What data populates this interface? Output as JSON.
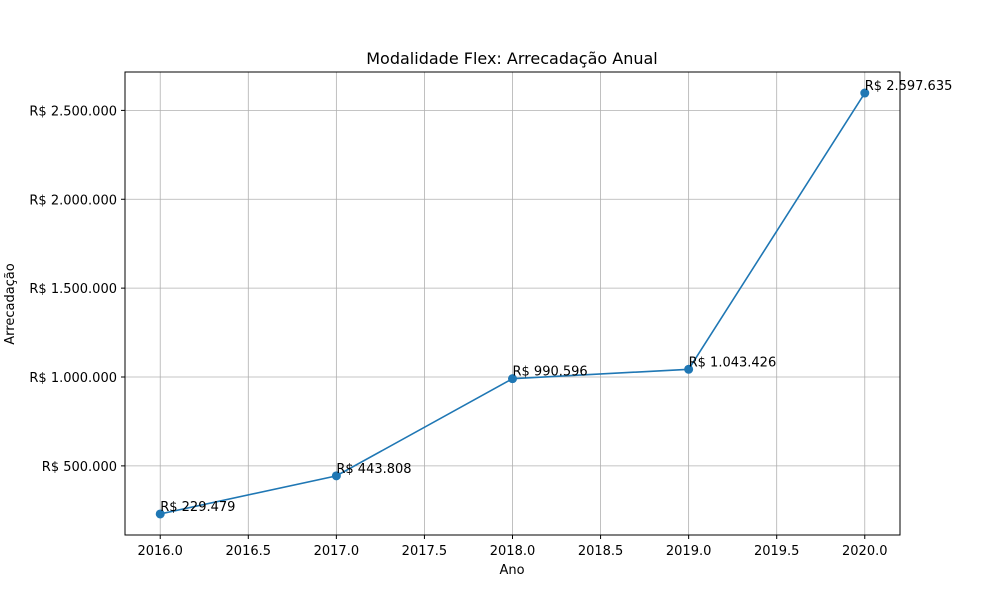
{
  "chart_data": {
    "type": "line",
    "title": "Modalidade Flex: Arrecadação Anual",
    "xlabel": "Ano",
    "ylabel": "Arrecadação",
    "xlim": [
      2015.8,
      2020.2
    ],
    "ylim": [
      111071,
      2716043
    ],
    "grid": true,
    "x_ticks": [
      2016.0,
      2016.5,
      2017.0,
      2017.5,
      2018.0,
      2018.5,
      2019.0,
      2019.5,
      2020.0
    ],
    "x_tick_labels": [
      "2016.0",
      "2016.5",
      "2017.0",
      "2017.5",
      "2018.0",
      "2018.5",
      "2019.0",
      "2019.5",
      "2020.0"
    ],
    "y_ticks": [
      500000,
      1000000,
      1500000,
      2000000,
      2500000
    ],
    "y_tick_labels": [
      "R$ 500.000",
      "R$ 1.000.000",
      "R$ 1.500.000",
      "R$ 2.000.000",
      "R$ 2.500.000"
    ],
    "series": [
      {
        "color": "#1f77b4",
        "marker": "circle",
        "x": [
          2016,
          2017,
          2018,
          2019,
          2020
        ],
        "values": [
          229479,
          443808,
          990596,
          1043426,
          2597635
        ],
        "data_labels": [
          "R$ 229.479",
          "R$ 443.808",
          "R$ 990.596",
          "R$ 1.043.426",
          "R$ 2.597.635"
        ]
      }
    ],
    "grid_color": "#b0b0b0"
  }
}
